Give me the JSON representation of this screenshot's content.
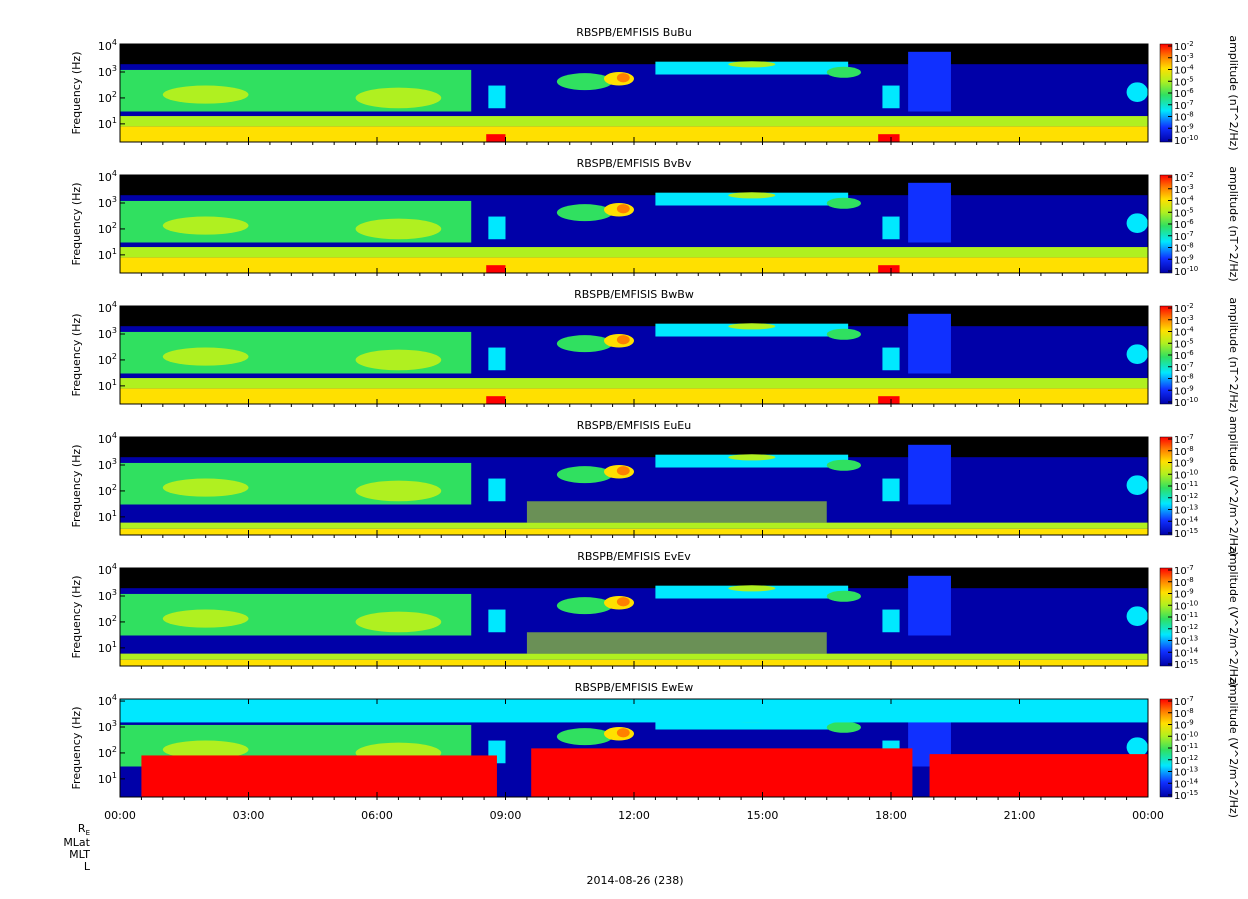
{
  "chart_data": [
    {
      "type": "heatmap",
      "title": "RBSPB/EMFISIS  BuBu",
      "ylabel": "Frequency (Hz)",
      "ylim": [
        2,
        12000
      ],
      "yscale": "log",
      "yticks": [
        {
          "v": 10,
          "e": "1"
        },
        {
          "v": 100,
          "e": "2"
        },
        {
          "v": 1000,
          "e": "3"
        },
        {
          "v": 10000,
          "e": "4"
        }
      ],
      "colorbar_label": "amplitude (nT^2/Hz)",
      "colorbar_ticks": [
        "-2",
        "-3",
        "-4",
        "-5",
        "-6",
        "-7",
        "-8",
        "-9",
        "-10"
      ],
      "style": "B"
    },
    {
      "type": "heatmap",
      "title": "RBSPB/EMFISIS  BvBv",
      "ylabel": "Frequency (Hz)",
      "ylim": [
        2,
        12000
      ],
      "yscale": "log",
      "yticks": [
        {
          "v": 10,
          "e": "1"
        },
        {
          "v": 100,
          "e": "2"
        },
        {
          "v": 1000,
          "e": "3"
        },
        {
          "v": 10000,
          "e": "4"
        }
      ],
      "colorbar_label": "amplitude (nT^2/Hz)",
      "colorbar_ticks": [
        "-2",
        "-3",
        "-4",
        "-5",
        "-6",
        "-7",
        "-8",
        "-9",
        "-10"
      ],
      "style": "B"
    },
    {
      "type": "heatmap",
      "title": "RBSPB/EMFISIS  BwBw",
      "ylabel": "Frequency (Hz)",
      "ylim": [
        2,
        12000
      ],
      "yscale": "log",
      "yticks": [
        {
          "v": 10,
          "e": "1"
        },
        {
          "v": 100,
          "e": "2"
        },
        {
          "v": 1000,
          "e": "3"
        },
        {
          "v": 10000,
          "e": "4"
        }
      ],
      "colorbar_label": "amplitude (nT^2/Hz)",
      "colorbar_ticks": [
        "-2",
        "-3",
        "-4",
        "-5",
        "-6",
        "-7",
        "-8",
        "-9",
        "-10"
      ],
      "style": "B"
    },
    {
      "type": "heatmap",
      "title": "RBSPB/EMFISIS  EuEu",
      "ylabel": "Frequency (Hz)",
      "ylim": [
        2,
        12000
      ],
      "yscale": "log",
      "yticks": [
        {
          "v": 10,
          "e": "1"
        },
        {
          "v": 100,
          "e": "2"
        },
        {
          "v": 1000,
          "e": "3"
        },
        {
          "v": 10000,
          "e": "4"
        }
      ],
      "colorbar_label": "amplitude (V^2/m^2/Hz)",
      "colorbar_ticks": [
        "-7",
        "-8",
        "-9",
        "-10",
        "-11",
        "-12",
        "-13",
        "-14",
        "-15"
      ],
      "style": "E"
    },
    {
      "type": "heatmap",
      "title": "RBSPB/EMFISIS  EvEv",
      "ylabel": "Frequency (Hz)",
      "ylim": [
        2,
        12000
      ],
      "yscale": "log",
      "yticks": [
        {
          "v": 10,
          "e": "1"
        },
        {
          "v": 100,
          "e": "2"
        },
        {
          "v": 1000,
          "e": "3"
        },
        {
          "v": 10000,
          "e": "4"
        }
      ],
      "colorbar_label": "amplitude (V^2/m^2/Hz)",
      "colorbar_ticks": [
        "-7",
        "-8",
        "-9",
        "-10",
        "-11",
        "-12",
        "-13",
        "-14",
        "-15"
      ],
      "style": "E"
    },
    {
      "type": "heatmap",
      "title": "RBSPB/EMFISIS  EwEw",
      "ylabel": "Frequency (Hz)",
      "ylim": [
        2,
        12000
      ],
      "yscale": "log",
      "yticks": [
        {
          "v": 10,
          "e": "1"
        },
        {
          "v": 100,
          "e": "2"
        },
        {
          "v": 1000,
          "e": "3"
        },
        {
          "v": 10000,
          "e": "4"
        }
      ],
      "colorbar_label": "amplitude (V^2/m^2/Hz)",
      "colorbar_ticks": [
        "-7",
        "-8",
        "-9",
        "-10",
        "-11",
        "-12",
        "-13",
        "-14",
        "-15"
      ],
      "style": "EW"
    }
  ],
  "time_axis": {
    "tick_hours": [
      0,
      3,
      6,
      9,
      12,
      15,
      18,
      21,
      24
    ],
    "tick_labels": [
      "00:00",
      "03:00",
      "06:00",
      "09:00",
      "12:00",
      "15:00",
      "18:00",
      "21:00",
      "00:00"
    ],
    "xlim_hours": [
      0,
      24
    ]
  },
  "ephemeris_labels": [
    "R",
    "MLat",
    "MLT",
    "L"
  ],
  "ephemeris_subscript": "E",
  "date_label": "2014-08-26 (238)",
  "colors": {
    "black": "#000000",
    "navy": "#0000a8",
    "blue": "#1030ff",
    "cyan": "#00e8ff",
    "green": "#30e060",
    "lime": "#b0f020",
    "yellow": "#ffe000",
    "orange": "#ff8000",
    "red": "#ff0000"
  }
}
